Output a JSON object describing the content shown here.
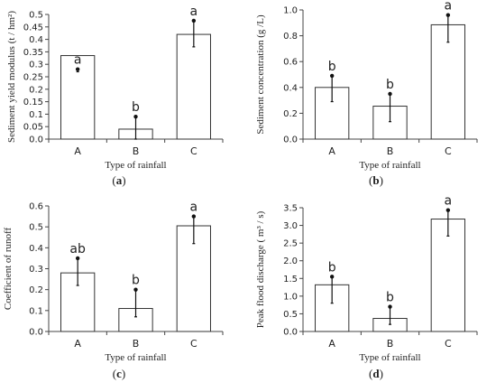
{
  "chart_data": [
    {
      "type": "bar",
      "panel_label": "a",
      "categories": [
        "A",
        "B",
        "C"
      ],
      "values": [
        0.335,
        0.04,
        0.42
      ],
      "error_low": [
        0.27,
        0.0,
        0.37
      ],
      "error_high": [
        0.28,
        0.09,
        0.475
      ],
      "significance": [
        "a",
        "b",
        "a"
      ],
      "xlabel": "Type of rainfall",
      "ylabel": "Sediment yield modulus (t / hm²)",
      "ylim": [
        0,
        0.5
      ],
      "yticks": [
        "0.0",
        "0.05",
        "0.1",
        "0.15",
        "0.2",
        "0.25",
        "0.3",
        "0.35",
        "0.4",
        "0.45",
        "0.5"
      ],
      "grid": false
    },
    {
      "type": "bar",
      "panel_label": "b",
      "categories": [
        "A",
        "B",
        "C"
      ],
      "values": [
        0.4,
        0.255,
        0.885
      ],
      "error_low": [
        0.29,
        0.135,
        0.75
      ],
      "error_high": [
        0.49,
        0.35,
        0.96
      ],
      "significance": [
        "b",
        "b",
        "a"
      ],
      "xlabel": "Type of rainfall",
      "ylabel": "Sediment concentration (g /L)",
      "ylim": [
        0,
        1.0
      ],
      "yticks": [
        "0.0",
        "0.2",
        "0.4",
        "0.6",
        "0.8",
        "1.0"
      ],
      "grid": false
    },
    {
      "type": "bar",
      "panel_label": "c",
      "categories": [
        "A",
        "B",
        "C"
      ],
      "values": [
        0.28,
        0.11,
        0.505
      ],
      "error_low": [
        0.22,
        0.07,
        0.42
      ],
      "error_high": [
        0.35,
        0.2,
        0.55
      ],
      "significance": [
        "ab",
        "b",
        "a"
      ],
      "xlabel": "Type of rainfall",
      "ylabel": "Coefficient of runoff",
      "ylim": [
        0,
        0.6
      ],
      "yticks": [
        "0.0",
        "0.1",
        "0.2",
        "0.3",
        "0.4",
        "0.5",
        "0.6"
      ],
      "grid": false
    },
    {
      "type": "bar",
      "panel_label": "d",
      "categories": [
        "A",
        "B",
        "C"
      ],
      "values": [
        1.32,
        0.37,
        3.18
      ],
      "error_low": [
        0.8,
        0.2,
        2.7
      ],
      "error_high": [
        1.55,
        0.7,
        3.43
      ],
      "significance": [
        "b",
        "b",
        "a"
      ],
      "xlabel": "Type of rainfall",
      "ylabel": "Peak flood discharge ( m³ / s)",
      "ylim": [
        0,
        3.5
      ],
      "yticks": [
        "0.0",
        "0.5",
        "1.0",
        "1.5",
        "2.0",
        "2.5",
        "3.0",
        "3.5"
      ],
      "grid": false
    }
  ]
}
